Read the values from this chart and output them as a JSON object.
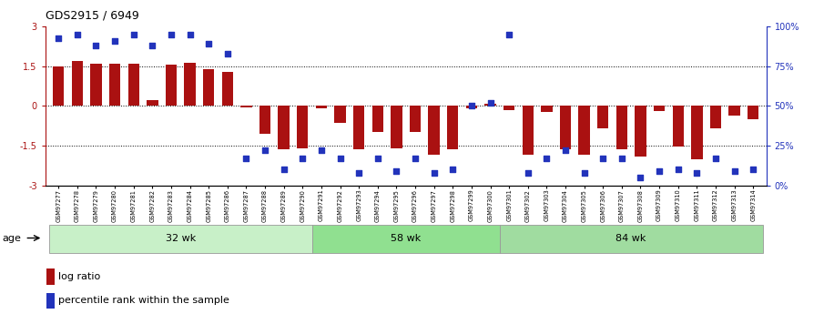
{
  "title": "GDS2915 / 6949",
  "samples": [
    "GSM97277",
    "GSM97278",
    "GSM97279",
    "GSM97280",
    "GSM97281",
    "GSM97282",
    "GSM97283",
    "GSM97284",
    "GSM97285",
    "GSM97286",
    "GSM97287",
    "GSM97288",
    "GSM97289",
    "GSM97290",
    "GSM97291",
    "GSM97292",
    "GSM97293",
    "GSM97294",
    "GSM97295",
    "GSM97296",
    "GSM97297",
    "GSM97298",
    "GSM97299",
    "GSM97300",
    "GSM97301",
    "GSM97302",
    "GSM97303",
    "GSM97304",
    "GSM97305",
    "GSM97306",
    "GSM97307",
    "GSM97308",
    "GSM97309",
    "GSM97310",
    "GSM97311",
    "GSM97312",
    "GSM97313",
    "GSM97314"
  ],
  "log_ratio": [
    1.5,
    1.7,
    1.6,
    1.6,
    1.6,
    0.22,
    1.55,
    1.65,
    1.4,
    1.3,
    -0.05,
    -1.05,
    -1.65,
    -1.6,
    -0.08,
    -0.65,
    -1.65,
    -1.0,
    -1.6,
    -1.0,
    -1.85,
    -1.65,
    -0.1,
    0.1,
    -0.15,
    -1.85,
    -0.22,
    -1.65,
    -1.85,
    -0.85,
    -1.65,
    -1.9,
    -0.2,
    -1.55,
    -2.0,
    -0.85,
    -0.35,
    -0.5
  ],
  "percentile": [
    93,
    95,
    88,
    91,
    95,
    88,
    95,
    95,
    89,
    83,
    17,
    22,
    10,
    17,
    22,
    17,
    8,
    17,
    9,
    17,
    8,
    10,
    50,
    52,
    95,
    8,
    17,
    22,
    8,
    17,
    17,
    5,
    9,
    10,
    8,
    17,
    9,
    10
  ],
  "groups": [
    {
      "label": "32 wk",
      "start": 0,
      "end": 14,
      "color": "#c8f0c8"
    },
    {
      "label": "58 wk",
      "start": 14,
      "end": 24,
      "color": "#90e090"
    },
    {
      "label": "84 wk",
      "start": 24,
      "end": 38,
      "color": "#a0dca0"
    }
  ],
  "age_label": "age",
  "ylim": [
    -3,
    3
  ],
  "bar_color": "#aa1111",
  "dot_color": "#2233bb",
  "dotted_lines": [
    -1.5,
    0,
    1.5
  ],
  "legend_bar": "log ratio",
  "legend_dot": "percentile rank within the sample",
  "left_yticks": [
    -3,
    -1.5,
    0,
    1.5,
    3
  ],
  "left_yticklabels": [
    "-3",
    "-1.5",
    "0",
    "1.5",
    "3"
  ],
  "right_yticklabels": [
    "0%",
    "25%",
    "50%",
    "75%",
    "100%"
  ]
}
